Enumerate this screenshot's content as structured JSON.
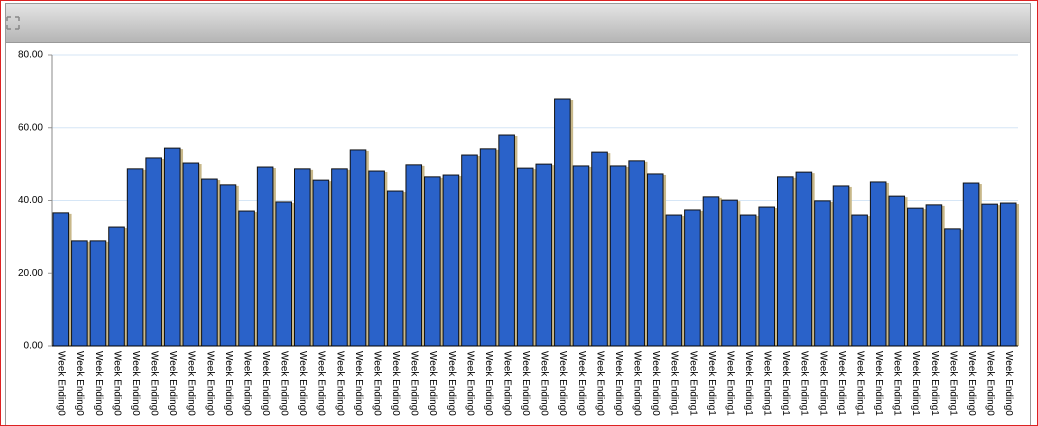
{
  "chart_data": {
    "type": "bar",
    "categories": [
      "Week Ending0",
      "Week Ending0",
      "Week Ending0",
      "Week Ending0",
      "Week Ending0",
      "Week Ending0",
      "Week Ending0",
      "Week Ending0",
      "Week Ending0",
      "Week Ending0",
      "Week Ending0",
      "Week Ending0",
      "Week Ending0",
      "Week Ending0",
      "Week Ending0",
      "Week Ending0",
      "Week Ending0",
      "Week Ending0",
      "Week Ending0",
      "Week Ending0",
      "Week Ending0",
      "Week Ending0",
      "Week Ending0",
      "Week Ending0",
      "Week Ending0",
      "Week Ending0",
      "Week Ending0",
      "Week Ending0",
      "Week Ending0",
      "Week Ending0",
      "Week Ending0",
      "Week Ending0",
      "Week Ending0",
      "Week Ending1",
      "Week Ending1",
      "Week Ending1",
      "Week Ending1",
      "Week Ending1",
      "Week Ending1",
      "Week Ending1",
      "Week Ending1",
      "Week Ending1",
      "Week Ending1",
      "Week Ending1",
      "Week Ending1",
      "Week Ending1",
      "Week Ending1",
      "Week Ending1",
      "Week Ending1",
      "Week Ending0",
      "Week Ending0",
      "Week Ending0"
    ],
    "values": [
      36.6,
      28.9,
      28.9,
      32.7,
      48.7,
      51.7,
      54.4,
      50.3,
      45.9,
      44.3,
      37.1,
      49.2,
      39.6,
      48.7,
      45.6,
      48.7,
      53.9,
      48.1,
      42.6,
      49.8,
      46.5,
      47.0,
      52.5,
      54.2,
      58.0,
      48.9,
      50.0,
      67.9,
      49.5,
      53.3,
      49.5,
      50.9,
      47.3,
      36.0,
      37.4,
      41.0,
      40.1,
      36.0,
      38.2,
      46.5,
      47.8,
      39.9,
      44.0,
      36.0,
      45.1,
      41.2,
      37.9,
      38.8,
      32.2,
      44.8,
      39.0,
      39.3
    ],
    "color": "#2a62c9",
    "ylim": [
      0,
      80
    ],
    "yticks": [
      {
        "value": 0,
        "label": "0.00"
      },
      {
        "value": 20,
        "label": "20.00"
      },
      {
        "value": 40,
        "label": "40.00"
      },
      {
        "value": 60,
        "label": "60.00"
      },
      {
        "value": 80,
        "label": "80.00"
      }
    ],
    "grid": true
  }
}
